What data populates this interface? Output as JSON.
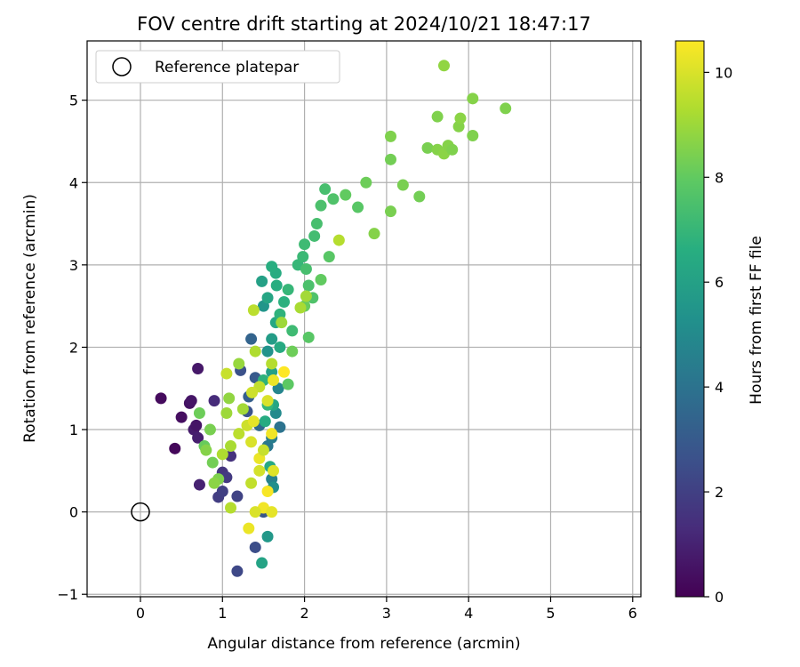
{
  "chart_data": {
    "type": "scatter",
    "title": "FOV centre drift starting at 2024/10/21 18:47:17",
    "xlabel": "Angular distance from reference (arcmin)",
    "ylabel": "Rotation from reference (arcmin)",
    "xlim": [
      -0.65,
      6.1
    ],
    "ylim": [
      -1.03,
      5.72
    ],
    "xticks": [
      "0",
      "1",
      "2",
      "3",
      "4",
      "5",
      "6"
    ],
    "yticks": [
      "−1",
      "0",
      "1",
      "2",
      "3",
      "4",
      "5"
    ],
    "grid": true,
    "legend": {
      "placement": "top-left",
      "entries": [
        "Reference platepar"
      ]
    },
    "reference": {
      "x": 0,
      "y": 0
    },
    "colorbar": {
      "label": "Hours from first FF file",
      "min": 0,
      "max": 10.6,
      "ticks": [
        "0",
        "2",
        "4",
        "6",
        "8",
        "10"
      ],
      "colormap": "viridis"
    },
    "points": [
      {
        "x": 0.25,
        "y": 1.38,
        "h": 0.3
      },
      {
        "x": 0.42,
        "y": 0.77,
        "h": 0.2
      },
      {
        "x": 0.5,
        "y": 1.15,
        "h": 0.4
      },
      {
        "x": 0.6,
        "y": 1.32,
        "h": 0.5
      },
      {
        "x": 0.62,
        "y": 1.35,
        "h": 0.6
      },
      {
        "x": 0.7,
        "y": 1.74,
        "h": 0.7
      },
      {
        "x": 0.65,
        "y": 1.0,
        "h": 0.8
      },
      {
        "x": 0.7,
        "y": 0.9,
        "h": 0.9
      },
      {
        "x": 0.72,
        "y": 0.33,
        "h": 1.0
      },
      {
        "x": 0.68,
        "y": 1.05,
        "h": 0.6
      },
      {
        "x": 0.9,
        "y": 1.35,
        "h": 1.3
      },
      {
        "x": 1.0,
        "y": 0.48,
        "h": 1.6
      },
      {
        "x": 1.05,
        "y": 0.42,
        "h": 1.8
      },
      {
        "x": 0.95,
        "y": 0.18,
        "h": 1.9
      },
      {
        "x": 1.0,
        "y": 0.25,
        "h": 2.0
      },
      {
        "x": 1.1,
        "y": 0.68,
        "h": 1.5
      },
      {
        "x": 1.18,
        "y": 0.19,
        "h": 2.1
      },
      {
        "x": 1.18,
        "y": -0.72,
        "h": 2.3
      },
      {
        "x": 1.4,
        "y": -0.43,
        "h": 2.5
      },
      {
        "x": 1.5,
        "y": 0.0,
        "h": 2.8
      },
      {
        "x": 1.22,
        "y": 1.72,
        "h": 2.6
      },
      {
        "x": 1.35,
        "y": 2.1,
        "h": 3.4
      },
      {
        "x": 1.4,
        "y": 1.63,
        "h": 3.0
      },
      {
        "x": 1.32,
        "y": 1.4,
        "h": 3.2
      },
      {
        "x": 1.3,
        "y": 1.22,
        "h": 2.7
      },
      {
        "x": 1.45,
        "y": 1.05,
        "h": 3.6
      },
      {
        "x": 1.55,
        "y": 0.8,
        "h": 4.2
      },
      {
        "x": 1.6,
        "y": 0.9,
        "h": 4.4
      },
      {
        "x": 1.6,
        "y": 0.4,
        "h": 4.6
      },
      {
        "x": 1.62,
        "y": 0.3,
        "h": 5.2
      },
      {
        "x": 1.55,
        "y": -0.3,
        "h": 5.6
      },
      {
        "x": 1.48,
        "y": -0.62,
        "h": 6.1
      },
      {
        "x": 1.65,
        "y": 1.2,
        "h": 5.0
      },
      {
        "x": 1.7,
        "y": 1.03,
        "h": 4.0
      },
      {
        "x": 1.68,
        "y": 1.5,
        "h": 4.8
      },
      {
        "x": 1.55,
        "y": 1.95,
        "h": 5.4
      },
      {
        "x": 1.6,
        "y": 2.1,
        "h": 5.8
      },
      {
        "x": 1.5,
        "y": 2.5,
        "h": 5.5
      },
      {
        "x": 1.48,
        "y": 2.8,
        "h": 6.0
      },
      {
        "x": 1.55,
        "y": 2.6,
        "h": 6.2
      },
      {
        "x": 1.65,
        "y": 2.3,
        "h": 6.3
      },
      {
        "x": 1.7,
        "y": 2.0,
        "h": 6.4
      },
      {
        "x": 1.6,
        "y": 1.7,
        "h": 6.0
      },
      {
        "x": 1.62,
        "y": 1.3,
        "h": 6.2
      },
      {
        "x": 1.58,
        "y": 0.55,
        "h": 6.4
      },
      {
        "x": 1.52,
        "y": 1.1,
        "h": 6.5
      },
      {
        "x": 1.66,
        "y": 2.75,
        "h": 6.6
      },
      {
        "x": 1.7,
        "y": 2.4,
        "h": 6.8
      },
      {
        "x": 1.75,
        "y": 2.55,
        "h": 6.7
      },
      {
        "x": 1.65,
        "y": 2.9,
        "h": 6.5
      },
      {
        "x": 1.6,
        "y": 2.98,
        "h": 6.6
      },
      {
        "x": 1.8,
        "y": 2.7,
        "h": 7.0
      },
      {
        "x": 1.85,
        "y": 2.2,
        "h": 7.2
      },
      {
        "x": 1.92,
        "y": 3.0,
        "h": 7.0
      },
      {
        "x": 1.98,
        "y": 3.1,
        "h": 7.1
      },
      {
        "x": 2.0,
        "y": 3.25,
        "h": 7.2
      },
      {
        "x": 2.02,
        "y": 2.95,
        "h": 7.4
      },
      {
        "x": 2.05,
        "y": 2.75,
        "h": 7.5
      },
      {
        "x": 2.1,
        "y": 2.6,
        "h": 7.6
      },
      {
        "x": 2.05,
        "y": 2.12,
        "h": 7.8
      },
      {
        "x": 2.12,
        "y": 3.35,
        "h": 7.3
      },
      {
        "x": 2.15,
        "y": 3.5,
        "h": 7.4
      },
      {
        "x": 2.2,
        "y": 3.72,
        "h": 7.5
      },
      {
        "x": 2.25,
        "y": 3.92,
        "h": 7.4
      },
      {
        "x": 2.35,
        "y": 3.8,
        "h": 7.6
      },
      {
        "x": 2.3,
        "y": 3.1,
        "h": 7.8
      },
      {
        "x": 2.2,
        "y": 2.82,
        "h": 8.0
      },
      {
        "x": 2.0,
        "y": 2.5,
        "h": 8.1
      },
      {
        "x": 1.85,
        "y": 1.95,
        "h": 8.2
      },
      {
        "x": 1.8,
        "y": 1.55,
        "h": 7.9
      },
      {
        "x": 1.55,
        "y": 1.3,
        "h": 7.0
      },
      {
        "x": 1.5,
        "y": 1.6,
        "h": 6.8
      },
      {
        "x": 2.5,
        "y": 3.85,
        "h": 8.0
      },
      {
        "x": 2.65,
        "y": 3.7,
        "h": 7.8
      },
      {
        "x": 2.75,
        "y": 4.0,
        "h": 8.2
      },
      {
        "x": 2.85,
        "y": 3.38,
        "h": 8.6
      },
      {
        "x": 3.05,
        "y": 3.65,
        "h": 8.4
      },
      {
        "x": 3.05,
        "y": 4.28,
        "h": 8.3
      },
      {
        "x": 3.05,
        "y": 4.56,
        "h": 8.5
      },
      {
        "x": 3.2,
        "y": 3.97,
        "h": 8.4
      },
      {
        "x": 3.4,
        "y": 3.83,
        "h": 8.3
      },
      {
        "x": 3.5,
        "y": 4.42,
        "h": 8.4
      },
      {
        "x": 3.62,
        "y": 4.8,
        "h": 8.5
      },
      {
        "x": 3.62,
        "y": 4.4,
        "h": 8.6
      },
      {
        "x": 3.7,
        "y": 4.35,
        "h": 8.7
      },
      {
        "x": 3.7,
        "y": 5.42,
        "h": 8.8
      },
      {
        "x": 3.75,
        "y": 4.45,
        "h": 8.6
      },
      {
        "x": 3.8,
        "y": 4.4,
        "h": 8.5
      },
      {
        "x": 3.88,
        "y": 4.68,
        "h": 8.6
      },
      {
        "x": 3.9,
        "y": 4.78,
        "h": 8.7
      },
      {
        "x": 4.05,
        "y": 5.02,
        "h": 8.6
      },
      {
        "x": 4.05,
        "y": 4.57,
        "h": 8.5
      },
      {
        "x": 4.45,
        "y": 4.9,
        "h": 8.5
      },
      {
        "x": 2.42,
        "y": 3.3,
        "h": 9.4
      },
      {
        "x": 2.02,
        "y": 2.62,
        "h": 9.1
      },
      {
        "x": 1.95,
        "y": 2.48,
        "h": 9.2
      },
      {
        "x": 1.72,
        "y": 2.3,
        "h": 9.0
      },
      {
        "x": 1.38,
        "y": 2.45,
        "h": 9.5
      },
      {
        "x": 1.4,
        "y": 1.95,
        "h": 9.3
      },
      {
        "x": 1.6,
        "y": 1.8,
        "h": 9.4
      },
      {
        "x": 1.45,
        "y": 1.52,
        "h": 9.6
      },
      {
        "x": 1.36,
        "y": 1.45,
        "h": 9.8
      },
      {
        "x": 1.2,
        "y": 1.8,
        "h": 8.9
      },
      {
        "x": 1.05,
        "y": 1.68,
        "h": 9.7
      },
      {
        "x": 1.08,
        "y": 1.38,
        "h": 8.8
      },
      {
        "x": 1.05,
        "y": 1.2,
        "h": 9.0
      },
      {
        "x": 0.85,
        "y": 1.0,
        "h": 8.4
      },
      {
        "x": 0.72,
        "y": 1.2,
        "h": 8.2
      },
      {
        "x": 0.78,
        "y": 0.8,
        "h": 8.1
      },
      {
        "x": 0.88,
        "y": 0.6,
        "h": 8.3
      },
      {
        "x": 0.95,
        "y": 0.4,
        "h": 8.5
      },
      {
        "x": 0.9,
        "y": 0.35,
        "h": 8.7
      },
      {
        "x": 1.1,
        "y": 0.8,
        "h": 9.2
      },
      {
        "x": 1.2,
        "y": 0.95,
        "h": 9.5
      },
      {
        "x": 1.3,
        "y": 1.05,
        "h": 9.8
      },
      {
        "x": 1.35,
        "y": 0.85,
        "h": 10.0
      },
      {
        "x": 1.38,
        "y": 1.1,
        "h": 10.2
      },
      {
        "x": 1.45,
        "y": 0.65,
        "h": 10.3
      },
      {
        "x": 1.6,
        "y": 0.95,
        "h": 10.4
      },
      {
        "x": 1.62,
        "y": 0.5,
        "h": 10.1
      },
      {
        "x": 1.55,
        "y": 0.25,
        "h": 10.5
      },
      {
        "x": 1.5,
        "y": 0.05,
        "h": 10.4
      },
      {
        "x": 1.6,
        "y": 0.0,
        "h": 10.2
      },
      {
        "x": 1.4,
        "y": 0.0,
        "h": 10.0
      },
      {
        "x": 1.32,
        "y": -0.2,
        "h": 10.3
      },
      {
        "x": 1.45,
        "y": 0.5,
        "h": 9.9
      },
      {
        "x": 1.35,
        "y": 0.35,
        "h": 9.6
      },
      {
        "x": 1.1,
        "y": 0.05,
        "h": 9.4
      },
      {
        "x": 1.5,
        "y": 0.75,
        "h": 9.7
      },
      {
        "x": 1.25,
        "y": 1.25,
        "h": 9.1
      },
      {
        "x": 1.75,
        "y": 1.7,
        "h": 10.6
      },
      {
        "x": 1.62,
        "y": 1.6,
        "h": 10.3
      },
      {
        "x": 1.55,
        "y": 1.35,
        "h": 10.0
      },
      {
        "x": 0.8,
        "y": 0.75,
        "h": 8.6
      },
      {
        "x": 1.0,
        "y": 0.7,
        "h": 9.3
      }
    ]
  }
}
